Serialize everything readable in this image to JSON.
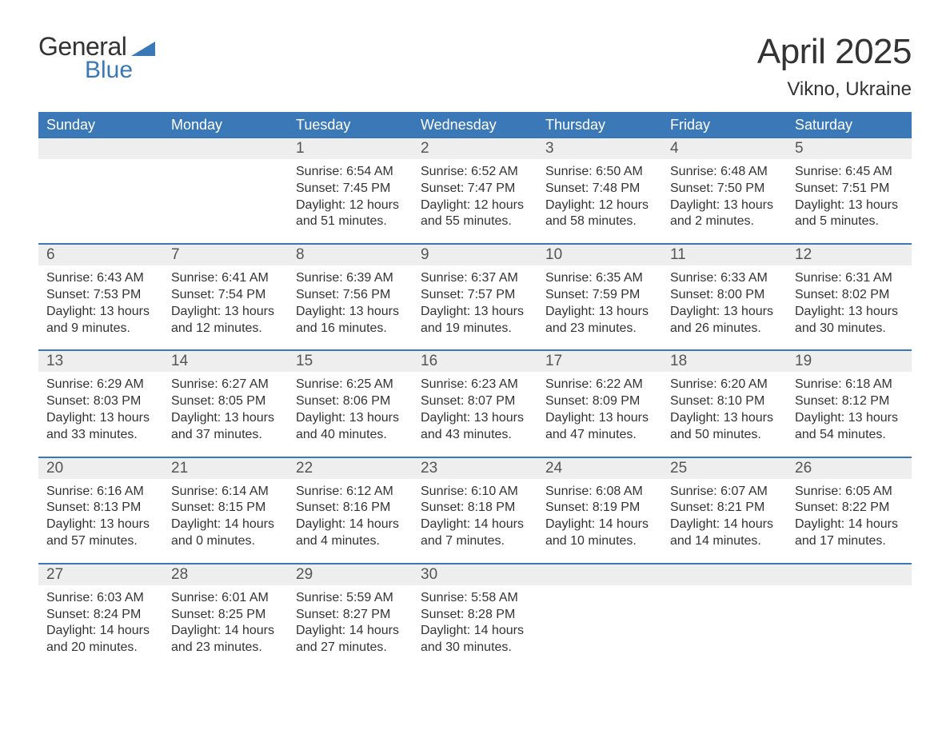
{
  "logo": {
    "text1": "General",
    "text2": "Blue",
    "tri_color": "#3b78b8"
  },
  "title": "April 2025",
  "subtitle": "Vikno, Ukraine",
  "header_bg": "#3b78b8",
  "header_fg": "#ffffff",
  "numrow_bg": "#eeeeee",
  "border_color": "#3b78b8",
  "text_color": "#333333",
  "day_names": [
    "Sunday",
    "Monday",
    "Tuesday",
    "Wednesday",
    "Thursday",
    "Friday",
    "Saturday"
  ],
  "weeks": [
    {
      "nums": [
        "",
        "",
        "1",
        "2",
        "3",
        "4",
        "5"
      ],
      "cells": [
        {},
        {},
        {
          "sunrise": "Sunrise: 6:54 AM",
          "sunset": "Sunset: 7:45 PM",
          "day1": "Daylight: 12 hours",
          "day2": "and 51 minutes."
        },
        {
          "sunrise": "Sunrise: 6:52 AM",
          "sunset": "Sunset: 7:47 PM",
          "day1": "Daylight: 12 hours",
          "day2": "and 55 minutes."
        },
        {
          "sunrise": "Sunrise: 6:50 AM",
          "sunset": "Sunset: 7:48 PM",
          "day1": "Daylight: 12 hours",
          "day2": "and 58 minutes."
        },
        {
          "sunrise": "Sunrise: 6:48 AM",
          "sunset": "Sunset: 7:50 PM",
          "day1": "Daylight: 13 hours",
          "day2": "and 2 minutes."
        },
        {
          "sunrise": "Sunrise: 6:45 AM",
          "sunset": "Sunset: 7:51 PM",
          "day1": "Daylight: 13 hours",
          "day2": "and 5 minutes."
        }
      ]
    },
    {
      "nums": [
        "6",
        "7",
        "8",
        "9",
        "10",
        "11",
        "12"
      ],
      "cells": [
        {
          "sunrise": "Sunrise: 6:43 AM",
          "sunset": "Sunset: 7:53 PM",
          "day1": "Daylight: 13 hours",
          "day2": "and 9 minutes."
        },
        {
          "sunrise": "Sunrise: 6:41 AM",
          "sunset": "Sunset: 7:54 PM",
          "day1": "Daylight: 13 hours",
          "day2": "and 12 minutes."
        },
        {
          "sunrise": "Sunrise: 6:39 AM",
          "sunset": "Sunset: 7:56 PM",
          "day1": "Daylight: 13 hours",
          "day2": "and 16 minutes."
        },
        {
          "sunrise": "Sunrise: 6:37 AM",
          "sunset": "Sunset: 7:57 PM",
          "day1": "Daylight: 13 hours",
          "day2": "and 19 minutes."
        },
        {
          "sunrise": "Sunrise: 6:35 AM",
          "sunset": "Sunset: 7:59 PM",
          "day1": "Daylight: 13 hours",
          "day2": "and 23 minutes."
        },
        {
          "sunrise": "Sunrise: 6:33 AM",
          "sunset": "Sunset: 8:00 PM",
          "day1": "Daylight: 13 hours",
          "day2": "and 26 minutes."
        },
        {
          "sunrise": "Sunrise: 6:31 AM",
          "sunset": "Sunset: 8:02 PM",
          "day1": "Daylight: 13 hours",
          "day2": "and 30 minutes."
        }
      ]
    },
    {
      "nums": [
        "13",
        "14",
        "15",
        "16",
        "17",
        "18",
        "19"
      ],
      "cells": [
        {
          "sunrise": "Sunrise: 6:29 AM",
          "sunset": "Sunset: 8:03 PM",
          "day1": "Daylight: 13 hours",
          "day2": "and 33 minutes."
        },
        {
          "sunrise": "Sunrise: 6:27 AM",
          "sunset": "Sunset: 8:05 PM",
          "day1": "Daylight: 13 hours",
          "day2": "and 37 minutes."
        },
        {
          "sunrise": "Sunrise: 6:25 AM",
          "sunset": "Sunset: 8:06 PM",
          "day1": "Daylight: 13 hours",
          "day2": "and 40 minutes."
        },
        {
          "sunrise": "Sunrise: 6:23 AM",
          "sunset": "Sunset: 8:07 PM",
          "day1": "Daylight: 13 hours",
          "day2": "and 43 minutes."
        },
        {
          "sunrise": "Sunrise: 6:22 AM",
          "sunset": "Sunset: 8:09 PM",
          "day1": "Daylight: 13 hours",
          "day2": "and 47 minutes."
        },
        {
          "sunrise": "Sunrise: 6:20 AM",
          "sunset": "Sunset: 8:10 PM",
          "day1": "Daylight: 13 hours",
          "day2": "and 50 minutes."
        },
        {
          "sunrise": "Sunrise: 6:18 AM",
          "sunset": "Sunset: 8:12 PM",
          "day1": "Daylight: 13 hours",
          "day2": "and 54 minutes."
        }
      ]
    },
    {
      "nums": [
        "20",
        "21",
        "22",
        "23",
        "24",
        "25",
        "26"
      ],
      "cells": [
        {
          "sunrise": "Sunrise: 6:16 AM",
          "sunset": "Sunset: 8:13 PM",
          "day1": "Daylight: 13 hours",
          "day2": "and 57 minutes."
        },
        {
          "sunrise": "Sunrise: 6:14 AM",
          "sunset": "Sunset: 8:15 PM",
          "day1": "Daylight: 14 hours",
          "day2": "and 0 minutes."
        },
        {
          "sunrise": "Sunrise: 6:12 AM",
          "sunset": "Sunset: 8:16 PM",
          "day1": "Daylight: 14 hours",
          "day2": "and 4 minutes."
        },
        {
          "sunrise": "Sunrise: 6:10 AM",
          "sunset": "Sunset: 8:18 PM",
          "day1": "Daylight: 14 hours",
          "day2": "and 7 minutes."
        },
        {
          "sunrise": "Sunrise: 6:08 AM",
          "sunset": "Sunset: 8:19 PM",
          "day1": "Daylight: 14 hours",
          "day2": "and 10 minutes."
        },
        {
          "sunrise": "Sunrise: 6:07 AM",
          "sunset": "Sunset: 8:21 PM",
          "day1": "Daylight: 14 hours",
          "day2": "and 14 minutes."
        },
        {
          "sunrise": "Sunrise: 6:05 AM",
          "sunset": "Sunset: 8:22 PM",
          "day1": "Daylight: 14 hours",
          "day2": "and 17 minutes."
        }
      ]
    },
    {
      "nums": [
        "27",
        "28",
        "29",
        "30",
        "",
        "",
        ""
      ],
      "cells": [
        {
          "sunrise": "Sunrise: 6:03 AM",
          "sunset": "Sunset: 8:24 PM",
          "day1": "Daylight: 14 hours",
          "day2": "and 20 minutes."
        },
        {
          "sunrise": "Sunrise: 6:01 AM",
          "sunset": "Sunset: 8:25 PM",
          "day1": "Daylight: 14 hours",
          "day2": "and 23 minutes."
        },
        {
          "sunrise": "Sunrise: 5:59 AM",
          "sunset": "Sunset: 8:27 PM",
          "day1": "Daylight: 14 hours",
          "day2": "and 27 minutes."
        },
        {
          "sunrise": "Sunrise: 5:58 AM",
          "sunset": "Sunset: 8:28 PM",
          "day1": "Daylight: 14 hours",
          "day2": "and 30 minutes."
        },
        {},
        {},
        {}
      ]
    }
  ]
}
